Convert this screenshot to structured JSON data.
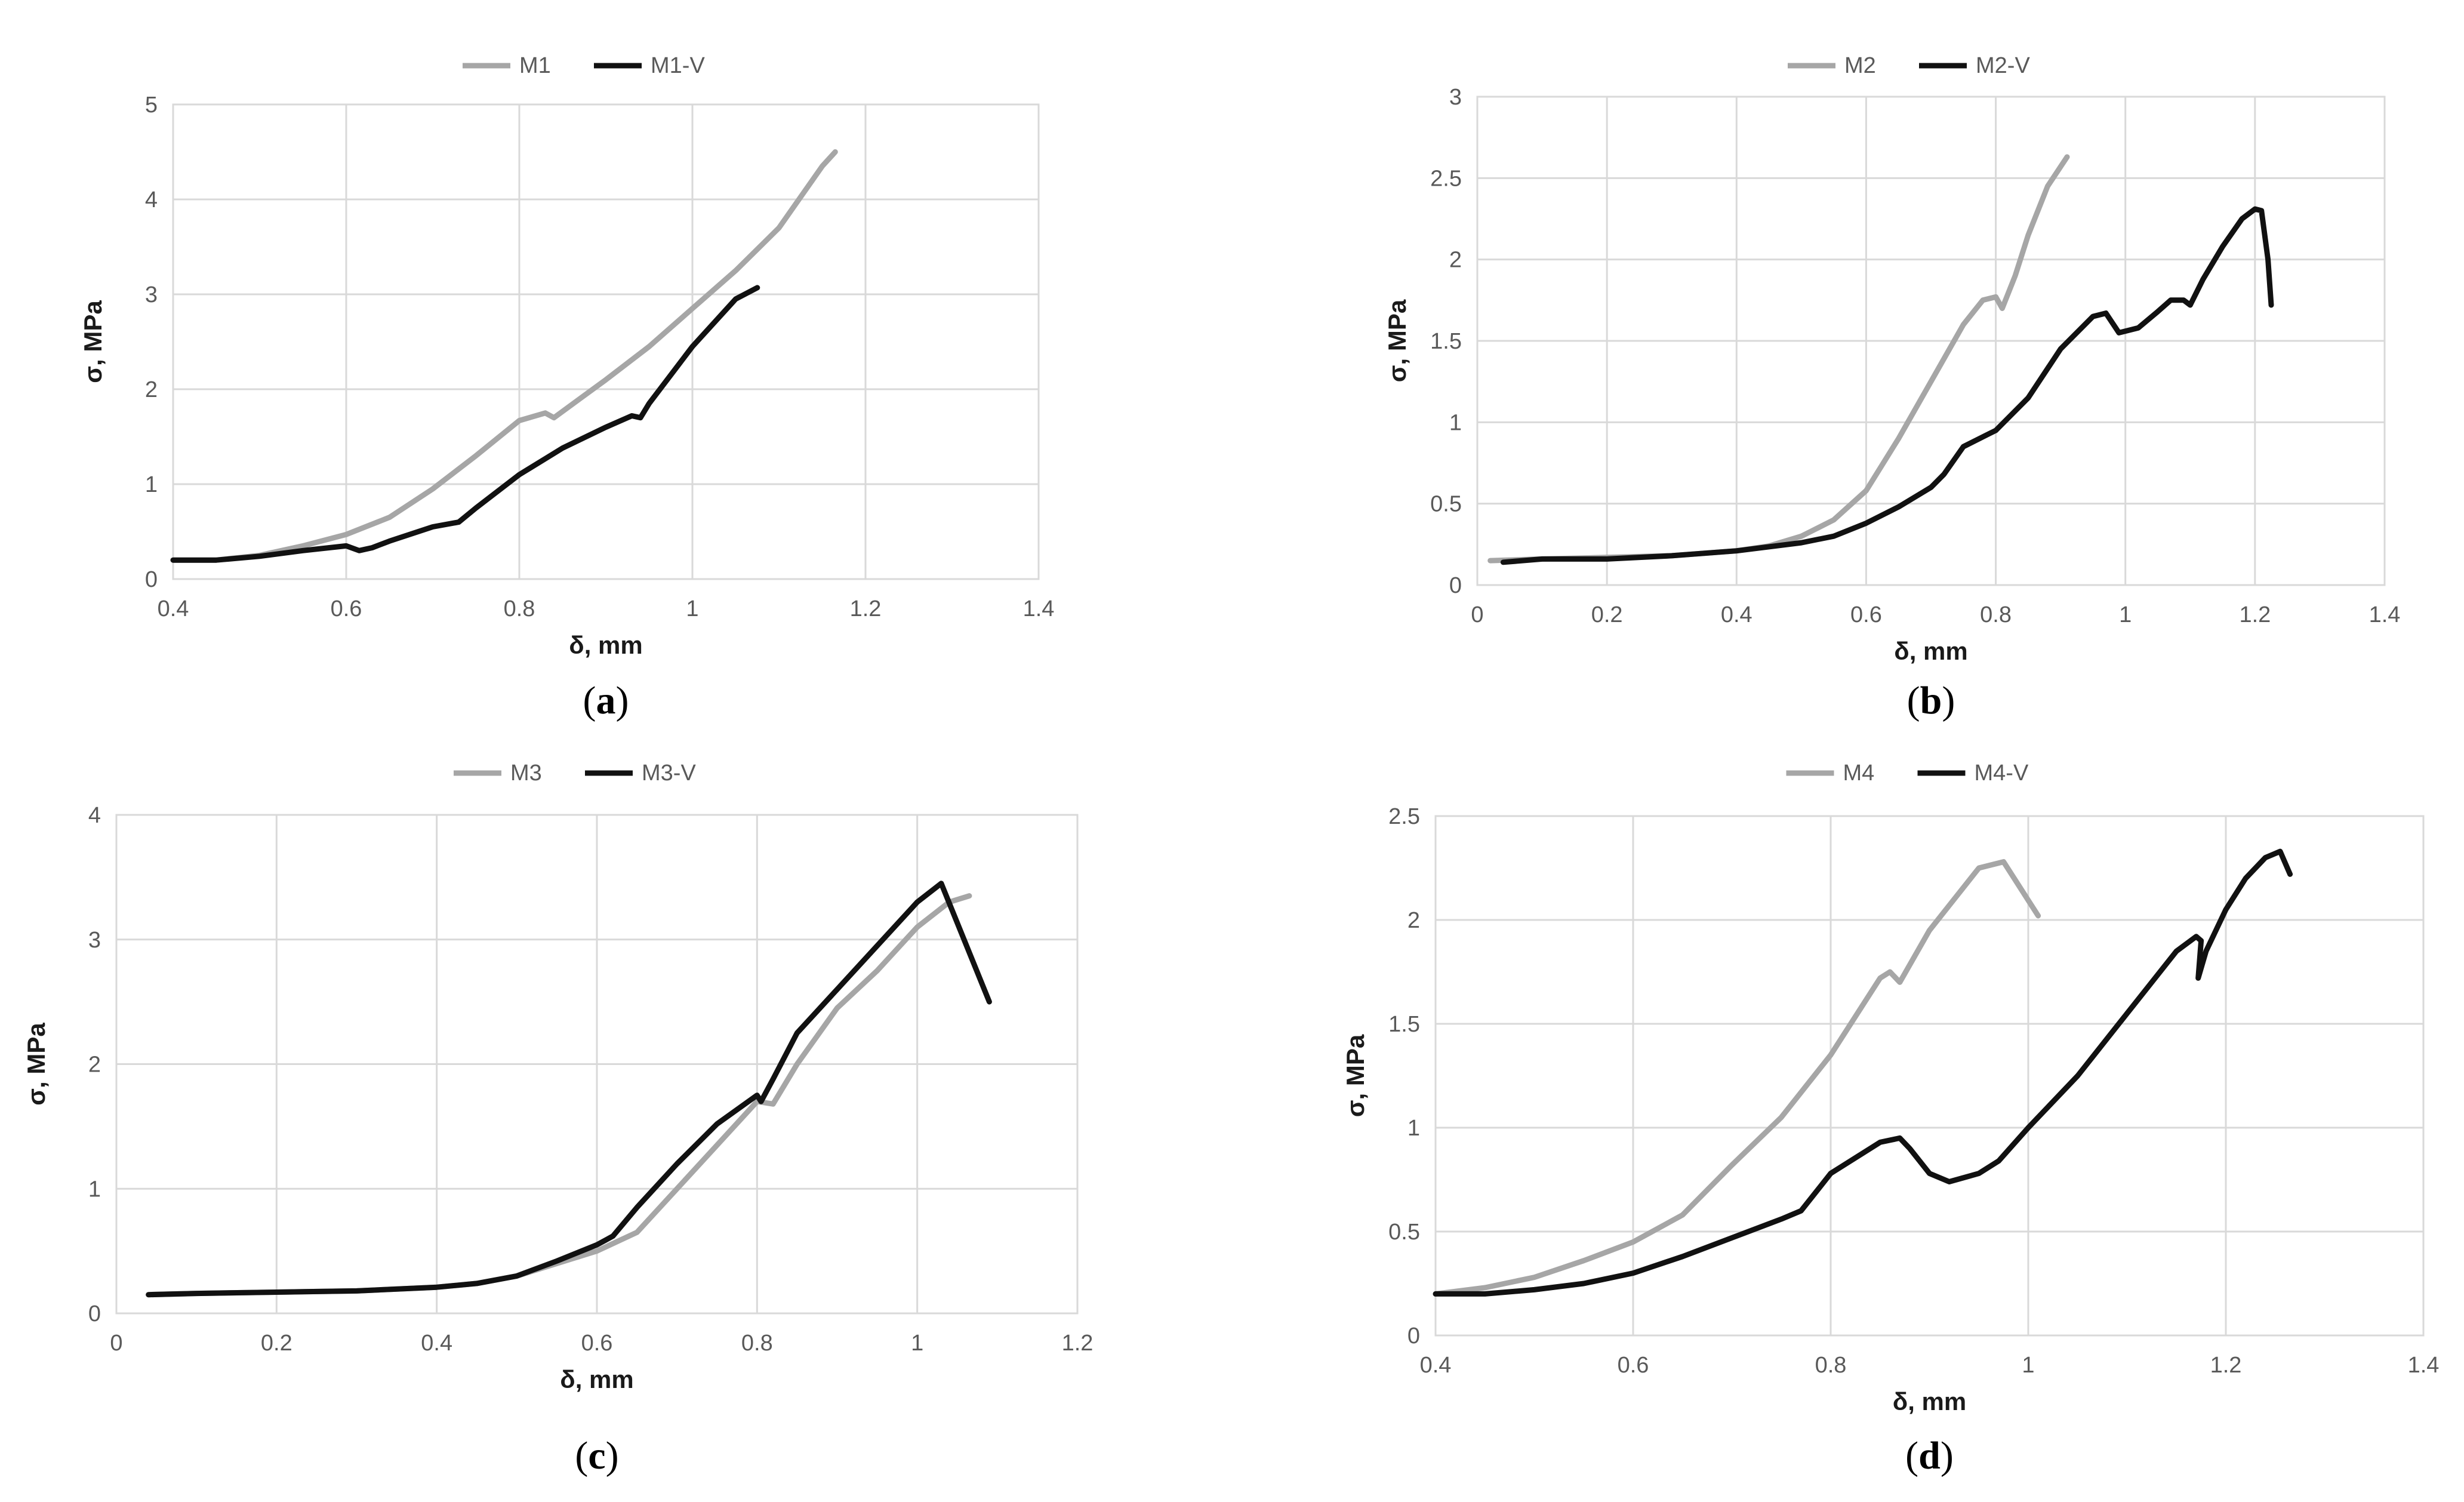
{
  "chart_data": [
    {
      "id": "a",
      "type": "line",
      "label": "a",
      "xlabel": "δ, mm",
      "ylabel": "σ, MPa",
      "xlim": [
        0.4,
        1.4
      ],
      "ylim": [
        0,
        5
      ],
      "xticks": [
        0.4,
        0.6,
        0.8,
        1,
        1.2,
        1.4
      ],
      "xtick_labels": [
        "0.4",
        "0.6",
        "0.8",
        "1",
        "1.2",
        "1.4"
      ],
      "yticks": [
        0,
        1,
        2,
        3,
        4,
        5
      ],
      "ytick_labels": [
        "0",
        "1",
        "2",
        "3",
        "4",
        "5"
      ],
      "grid": true,
      "legend_position": "top-center",
      "series": [
        {
          "name": "M1",
          "color": "#a6a6a6",
          "x": [
            0.4,
            0.45,
            0.5,
            0.55,
            0.6,
            0.65,
            0.7,
            0.75,
            0.8,
            0.83,
            0.84,
            0.87,
            0.9,
            0.95,
            1.0,
            1.05,
            1.1,
            1.15,
            1.165
          ],
          "y": [
            0.2,
            0.2,
            0.25,
            0.35,
            0.47,
            0.65,
            0.95,
            1.3,
            1.67,
            1.75,
            1.7,
            1.9,
            2.1,
            2.45,
            2.85,
            3.25,
            3.7,
            4.35,
            4.5
          ]
        },
        {
          "name": "M1-V",
          "color": "#111111",
          "x": [
            0.4,
            0.45,
            0.5,
            0.55,
            0.6,
            0.615,
            0.63,
            0.65,
            0.7,
            0.73,
            0.75,
            0.8,
            0.85,
            0.9,
            0.93,
            0.94,
            0.95,
            1.0,
            1.05,
            1.075
          ],
          "y": [
            0.2,
            0.2,
            0.24,
            0.3,
            0.35,
            0.3,
            0.33,
            0.4,
            0.55,
            0.6,
            0.75,
            1.1,
            1.38,
            1.6,
            1.72,
            1.7,
            1.85,
            2.45,
            2.95,
            3.07
          ]
        }
      ]
    },
    {
      "id": "b",
      "type": "line",
      "label": "b",
      "xlabel": "δ, mm",
      "ylabel": "σ, MPa",
      "xlim": [
        0,
        1.4
      ],
      "ylim": [
        0,
        3
      ],
      "xticks": [
        0,
        0.2,
        0.4,
        0.6,
        0.8,
        1,
        1.2,
        1.4
      ],
      "xtick_labels": [
        "0",
        "0.2",
        "0.4",
        "0.6",
        "0.8",
        "1",
        "1.2",
        "1.4"
      ],
      "yticks": [
        0,
        0.5,
        1,
        1.5,
        2,
        2.5,
        3
      ],
      "ytick_labels": [
        "0",
        "0.5",
        "1",
        "1.5",
        "2",
        "2.5",
        "3"
      ],
      "grid": true,
      "legend_position": "top-center",
      "series": [
        {
          "name": "M2",
          "color": "#a6a6a6",
          "x": [
            0.02,
            0.1,
            0.2,
            0.3,
            0.4,
            0.45,
            0.5,
            0.55,
            0.6,
            0.65,
            0.7,
            0.75,
            0.78,
            0.8,
            0.81,
            0.83,
            0.85,
            0.88,
            0.91
          ],
          "y": [
            0.15,
            0.16,
            0.17,
            0.18,
            0.21,
            0.24,
            0.3,
            0.4,
            0.58,
            0.9,
            1.25,
            1.6,
            1.75,
            1.77,
            1.7,
            1.9,
            2.15,
            2.45,
            2.63
          ]
        },
        {
          "name": "M2-V",
          "color": "#111111",
          "x": [
            0.04,
            0.1,
            0.2,
            0.3,
            0.4,
            0.5,
            0.55,
            0.6,
            0.65,
            0.7,
            0.72,
            0.75,
            0.79,
            0.8,
            0.85,
            0.9,
            0.95,
            0.97,
            0.99,
            1.02,
            1.05,
            1.07,
            1.09,
            1.1,
            1.12,
            1.15,
            1.18,
            1.2,
            1.21,
            1.22,
            1.225
          ],
          "y": [
            0.14,
            0.16,
            0.16,
            0.18,
            0.21,
            0.26,
            0.3,
            0.38,
            0.48,
            0.6,
            0.68,
            0.85,
            0.93,
            0.95,
            1.15,
            1.45,
            1.65,
            1.67,
            1.55,
            1.58,
            1.68,
            1.75,
            1.75,
            1.72,
            1.88,
            2.08,
            2.25,
            2.31,
            2.3,
            2.0,
            1.72
          ]
        }
      ]
    },
    {
      "id": "c",
      "type": "line",
      "label": "c",
      "xlabel": "δ, mm",
      "ylabel": "σ, MPa",
      "xlim": [
        0,
        1.2
      ],
      "ylim": [
        0,
        4
      ],
      "xticks": [
        0,
        0.2,
        0.4,
        0.6,
        0.8,
        1,
        1.2
      ],
      "xtick_labels": [
        "0",
        "0.2",
        "0.4",
        "0.6",
        "0.8",
        "1",
        "1.2"
      ],
      "yticks": [
        0,
        1,
        2,
        3,
        4
      ],
      "ytick_labels": [
        "0",
        "1",
        "2",
        "3",
        "4"
      ],
      "grid": true,
      "legend_position": "top-center",
      "series": [
        {
          "name": "M3",
          "color": "#a6a6a6",
          "x": [
            0.04,
            0.1,
            0.2,
            0.3,
            0.4,
            0.45,
            0.5,
            0.55,
            0.6,
            0.65,
            0.7,
            0.75,
            0.8,
            0.82,
            0.85,
            0.9,
            0.95,
            1.0,
            1.04,
            1.065
          ],
          "y": [
            0.15,
            0.16,
            0.17,
            0.18,
            0.21,
            0.24,
            0.3,
            0.4,
            0.5,
            0.65,
            1.0,
            1.35,
            1.7,
            1.68,
            2.0,
            2.45,
            2.75,
            3.1,
            3.3,
            3.35
          ]
        },
        {
          "name": "M3-V",
          "color": "#111111",
          "x": [
            0.04,
            0.1,
            0.2,
            0.3,
            0.4,
            0.45,
            0.5,
            0.55,
            0.6,
            0.62,
            0.65,
            0.7,
            0.75,
            0.8,
            0.805,
            0.82,
            0.85,
            0.9,
            0.95,
            1.0,
            1.03,
            1.09
          ],
          "y": [
            0.15,
            0.16,
            0.17,
            0.18,
            0.21,
            0.24,
            0.3,
            0.42,
            0.55,
            0.62,
            0.85,
            1.2,
            1.52,
            1.75,
            1.7,
            1.88,
            2.25,
            2.6,
            2.95,
            3.3,
            3.45,
            2.5
          ]
        }
      ]
    },
    {
      "id": "d",
      "type": "line",
      "label": "d",
      "xlabel": "δ, mm",
      "ylabel": "σ, MPa",
      "xlim": [
        0.4,
        1.4
      ],
      "ylim": [
        0,
        2.5
      ],
      "xticks": [
        0.4,
        0.6,
        0.8,
        1,
        1.2,
        1.4
      ],
      "xtick_labels": [
        "0.4",
        "0.6",
        "0.8",
        "1",
        "1.2",
        "1.4"
      ],
      "yticks": [
        0,
        0.5,
        1,
        1.5,
        2,
        2.5
      ],
      "ytick_labels": [
        "0",
        "0.5",
        "1",
        "1.5",
        "2",
        "2.5"
      ],
      "grid": true,
      "legend_position": "top-center",
      "series": [
        {
          "name": "M4",
          "color": "#a6a6a6",
          "x": [
            0.4,
            0.45,
            0.5,
            0.55,
            0.6,
            0.65,
            0.7,
            0.75,
            0.8,
            0.85,
            0.86,
            0.87,
            0.9,
            0.95,
            0.975,
            1.01
          ],
          "y": [
            0.2,
            0.23,
            0.28,
            0.36,
            0.45,
            0.58,
            0.82,
            1.05,
            1.35,
            1.72,
            1.75,
            1.7,
            1.95,
            2.25,
            2.28,
            2.02
          ]
        },
        {
          "name": "M4-V",
          "color": "#111111",
          "x": [
            0.4,
            0.45,
            0.5,
            0.55,
            0.6,
            0.65,
            0.7,
            0.75,
            0.77,
            0.8,
            0.85,
            0.87,
            0.88,
            0.9,
            0.92,
            0.95,
            0.97,
            1.0,
            1.05,
            1.1,
            1.15,
            1.17,
            1.175,
            1.172,
            1.18,
            1.2,
            1.22,
            1.24,
            1.255,
            1.265
          ],
          "y": [
            0.2,
            0.2,
            0.22,
            0.25,
            0.3,
            0.38,
            0.47,
            0.56,
            0.6,
            0.78,
            0.93,
            0.95,
            0.9,
            0.78,
            0.74,
            0.78,
            0.84,
            1.0,
            1.25,
            1.55,
            1.85,
            1.92,
            1.9,
            1.72,
            1.85,
            2.05,
            2.2,
            2.3,
            2.33,
            2.22
          ]
        }
      ]
    }
  ]
}
